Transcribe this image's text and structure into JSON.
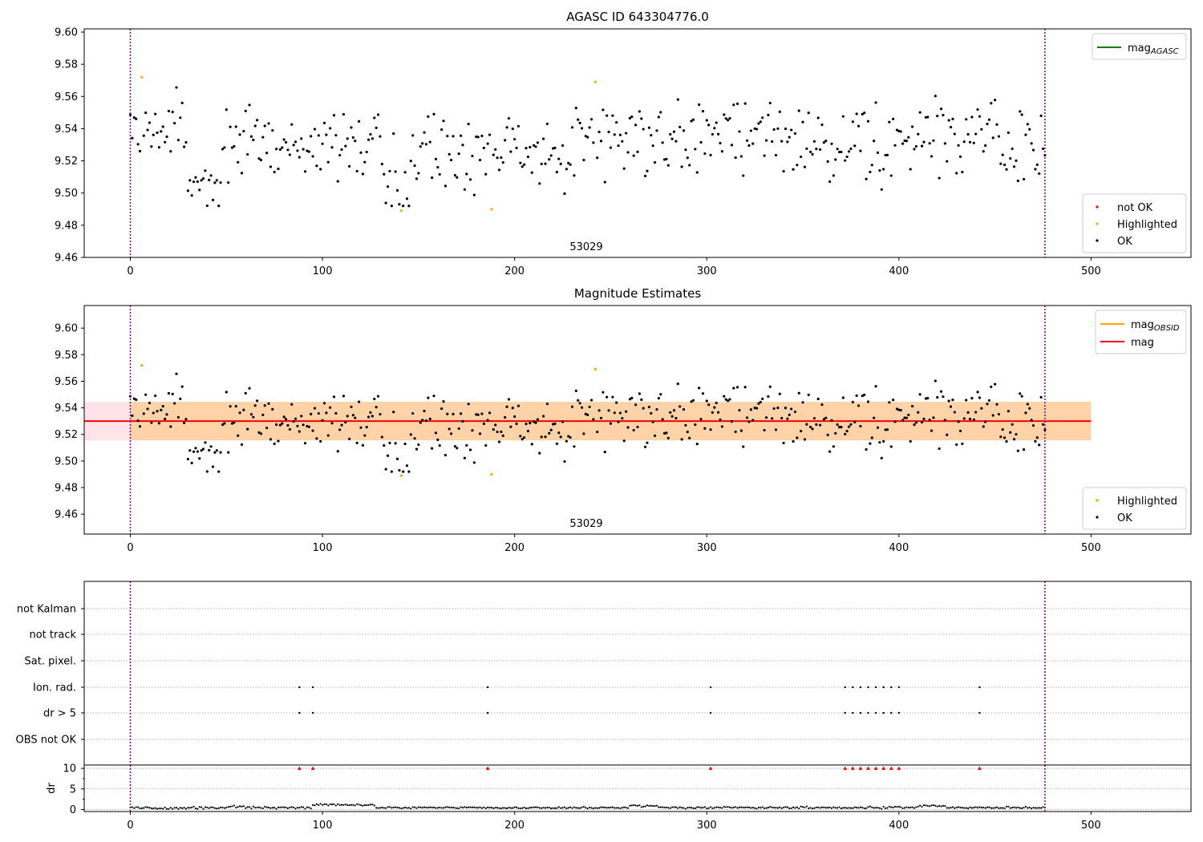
{
  "chart_data": [
    {
      "type": "scatter",
      "title": "AGASC ID 643304776.0",
      "xlim": [
        -24,
        552
      ],
      "ylim": [
        9.46,
        9.602
      ],
      "xticks": [
        0,
        100,
        200,
        300,
        400,
        500
      ],
      "yticks": [
        9.46,
        9.48,
        9.5,
        9.52,
        9.54,
        9.56,
        9.58,
        9.6
      ],
      "ytick_labels": [
        "9.46",
        "9.48",
        "9.50",
        "9.52",
        "9.54",
        "9.56",
        "9.58",
        "9.60"
      ],
      "obsid_label": "53029",
      "vlines": [
        0,
        476
      ],
      "legend_top": {
        "placement": "top-right",
        "entries": [
          {
            "label": "mag",
            "sub": "AGASC",
            "color": "#008000"
          }
        ]
      },
      "legend_bottom": {
        "placement": "bottom-right",
        "entries": [
          {
            "label": "not OK",
            "color": "#ff0000"
          },
          {
            "label": "Highlighted",
            "color": "#ffa500"
          },
          {
            "label": "OK",
            "color": "#000000"
          }
        ]
      },
      "series": [
        {
          "name": "Highlighted",
          "x": [
            6,
            141,
            188,
            242
          ],
          "y": [
            9.572,
            9.489,
            9.49,
            9.569
          ]
        },
        {
          "name": "OK",
          "x": [],
          "y": []
        }
      ]
    },
    {
      "type": "scatter",
      "title": "Magnitude Estimates",
      "xlim": [
        -24,
        552
      ],
      "ylim": [
        9.445,
        9.617
      ],
      "xticks": [
        0,
        100,
        200,
        300,
        400,
        500
      ],
      "yticks": [
        9.46,
        9.48,
        9.5,
        9.52,
        9.54,
        9.56,
        9.58,
        9.6
      ],
      "ytick_labels": [
        "9.46",
        "9.48",
        "9.50",
        "9.52",
        "9.54",
        "9.56",
        "9.58",
        "9.60"
      ],
      "obsid_label": "53029",
      "vlines": [
        0,
        476
      ],
      "mag_line": {
        "y": 9.53,
        "x": [
          -24,
          500
        ],
        "color": "#ff0000"
      },
      "band_outer": {
        "y": [
          9.5155,
          9.5445
        ],
        "x": [
          -24,
          500
        ],
        "color": "#ffc0cb"
      },
      "band_inner": {
        "y": [
          9.5155,
          9.5445
        ],
        "x": [
          0,
          500
        ],
        "color": "#ffa500"
      },
      "legend_top": {
        "placement": "top-right",
        "entries": [
          {
            "label": "mag",
            "sub": "OBSID",
            "color": "#ffa500"
          },
          {
            "label": "mag",
            "sub": "",
            "color": "#ff0000"
          }
        ]
      },
      "legend_bottom": {
        "placement": "bottom-right",
        "entries": [
          {
            "label": "Highlighted",
            "color": "#ffa500"
          },
          {
            "label": "OK",
            "color": "#000000"
          }
        ]
      },
      "series": [
        {
          "name": "Highlighted",
          "x": [
            6,
            141,
            188,
            242
          ],
          "y": [
            9.572,
            9.489,
            9.49,
            9.569
          ]
        },
        {
          "name": "OK",
          "x": [],
          "y": []
        }
      ]
    },
    {
      "type": "scatter",
      "title": "",
      "xlim": [
        -24,
        552
      ],
      "xticks": [
        0,
        100,
        200,
        300,
        400,
        500
      ],
      "categories": [
        "not Kalman",
        "not track",
        "Sat. pixel.",
        "Ion. rad.",
        "dr > 5",
        "OBS not OK"
      ],
      "flag_points": {
        "Ion. rad.": [
          88,
          95,
          186,
          302,
          372,
          376,
          380,
          384,
          388,
          392,
          396,
          400,
          442
        ],
        "dr > 5": [
          88,
          95,
          186,
          302,
          372,
          376,
          380,
          384,
          388,
          392,
          396,
          400,
          442
        ]
      },
      "vlines": [
        0,
        476
      ]
    },
    {
      "type": "scatter",
      "title": "",
      "ylabel": "dr",
      "xlim": [
        -24,
        552
      ],
      "ylim": [
        -0.5,
        10.8
      ],
      "yticks": [
        0,
        5,
        10
      ],
      "ytick_labels": [
        "0",
        "5",
        "10"
      ],
      "xticks": [
        0,
        100,
        200,
        300,
        400,
        500
      ],
      "xtick_labels": [
        "0",
        "100",
        "200",
        "300",
        "400",
        "500"
      ],
      "clipped_points": {
        "x": [
          88,
          95,
          186,
          302,
          372,
          376,
          380,
          384,
          388,
          392,
          396,
          400,
          442
        ],
        "y_display": 10,
        "color": "#ff0000"
      },
      "vlines": [
        0,
        476
      ],
      "series": [
        {
          "name": "dr",
          "x": [],
          "y": []
        }
      ]
    }
  ]
}
